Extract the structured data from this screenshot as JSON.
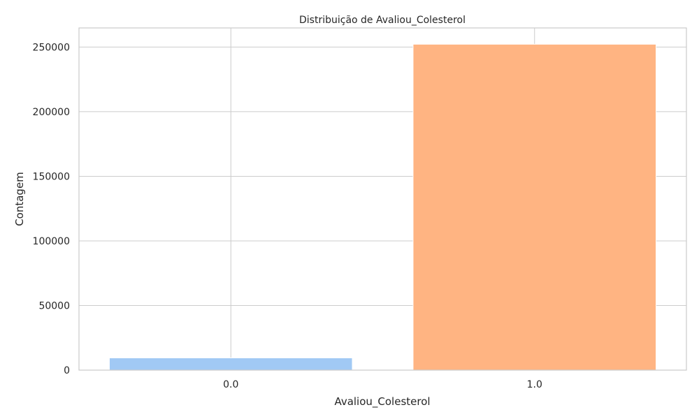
{
  "chart_data": {
    "type": "bar",
    "title": "Distribuição de Avaliou_Colesterol",
    "xlabel": "Avaliou_Colesterol",
    "ylabel": "Contagem",
    "categories": [
      "0.0",
      "1.0"
    ],
    "values": [
      9470,
      252210
    ],
    "colors": [
      "#a1c9f4",
      "#ffb482"
    ],
    "ylim": [
      0,
      264820
    ],
    "yticks": [
      0,
      50000,
      100000,
      150000,
      200000,
      250000
    ],
    "ytick_labels": [
      "0",
      "50000",
      "100000",
      "150000",
      "200000",
      "250000"
    ],
    "grid": true,
    "legend": "none"
  }
}
